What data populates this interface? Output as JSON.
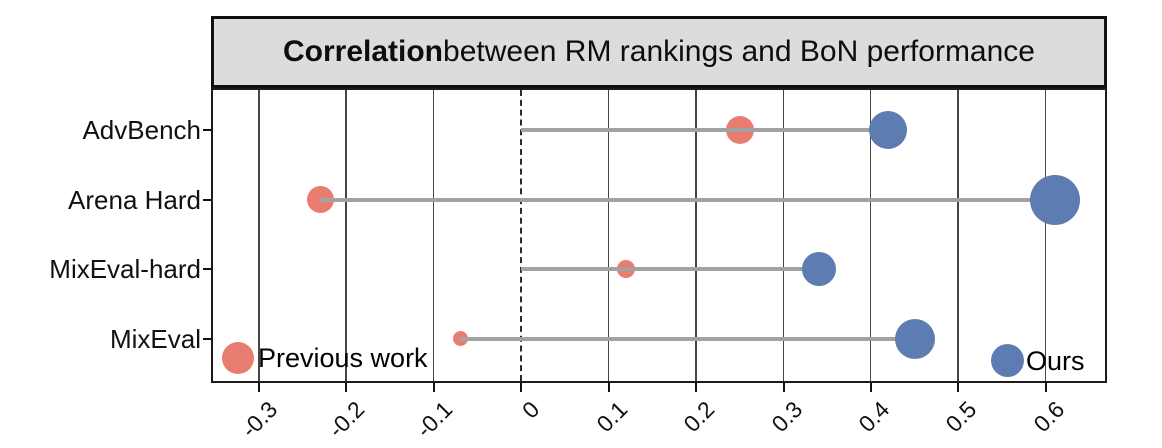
{
  "title": {
    "bold": "Correlation",
    "rest": " between RM rankings and BoN performance"
  },
  "legend": {
    "items": [
      {
        "label": "Previous work",
        "color": "#E87D6F"
      },
      {
        "label": "Ours",
        "color": "#5C7CB2"
      }
    ]
  },
  "x_tick_labels": [
    "-0.3",
    "-0.2",
    "-0.1",
    "0",
    "0.1",
    "0.2",
    "0.3",
    "0.4",
    "0.5",
    "0.6"
  ],
  "chart_data": {
    "type": "scatter",
    "title": "Correlation between RM rankings and BoN performance",
    "xlabel": "",
    "ylabel": "",
    "categories": [
      "AdvBench",
      "Arena Hard",
      "MixEval-hard",
      "MixEval"
    ],
    "series": [
      {
        "name": "Previous work",
        "color": "#E87D6F",
        "values": [
          0.25,
          -0.23,
          0.12,
          -0.07
        ],
        "marker_radius_px": [
          14,
          13.5,
          9,
          7.5
        ]
      },
      {
        "name": "Ours",
        "color": "#5C7CB2",
        "values": [
          0.42,
          0.61,
          0.34,
          0.45
        ],
        "marker_radius_px": [
          19,
          25,
          17,
          20
        ]
      }
    ],
    "x_ticks": [
      -0.3,
      -0.2,
      -0.1,
      0,
      0.1,
      0.2,
      0.3,
      0.4,
      0.5,
      0.6
    ],
    "xlim": [
      -0.355,
      0.67
    ],
    "grid": "vertical solid lines at ticks; zero line dashed",
    "connectors": "gray line per category from min(previous-work value, 0) to ours value",
    "legend_position": "inside bottom: Previous work at left, Ours at right"
  }
}
